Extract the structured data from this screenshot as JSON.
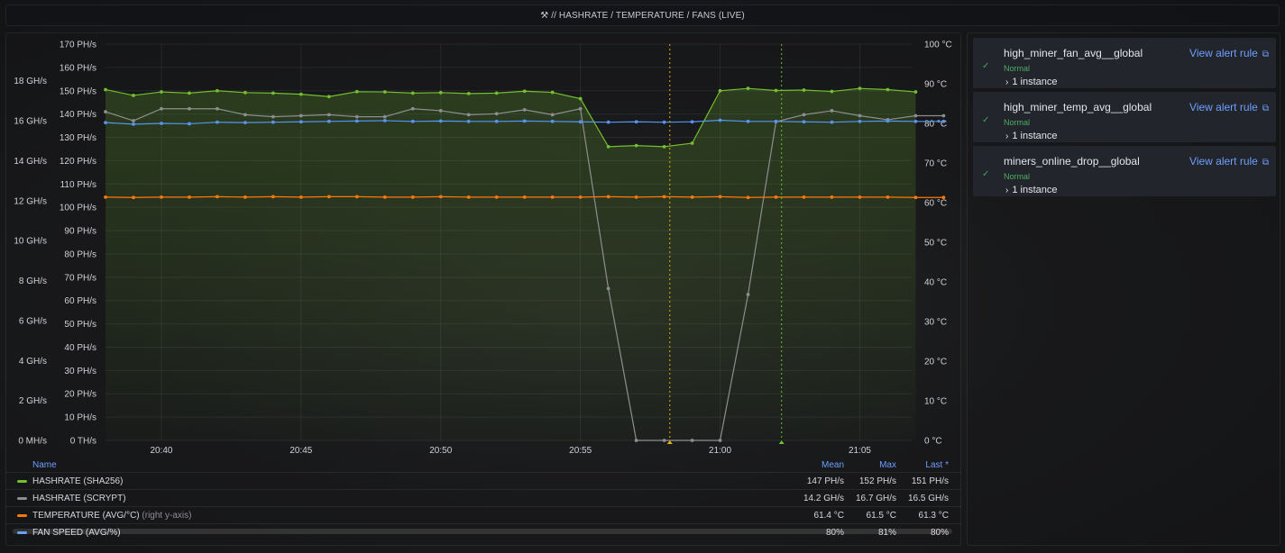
{
  "header": {
    "icon": "pick-icon",
    "title": "// HASHRATE / TEMPERATURE / FANS (LIVE)"
  },
  "chart_data": {
    "type": "line",
    "x": [
      "20:38",
      "20:39",
      "20:40",
      "20:41",
      "20:42",
      "20:43",
      "20:44",
      "20:45",
      "20:46",
      "20:47",
      "20:48",
      "20:49",
      "20:50",
      "20:51",
      "20:52",
      "20:53",
      "20:54",
      "20:55",
      "20:56",
      "20:57",
      "20:58",
      "20:59",
      "21:00",
      "21:01",
      "21:02",
      "21:03",
      "21:04",
      "21:05",
      "21:06",
      "21:07",
      "21:08"
    ],
    "x_ticks": [
      "20:40",
      "20:45",
      "20:50",
      "20:55",
      "21:00",
      "21:05"
    ],
    "left_axis_1": {
      "unit": "PH/s",
      "ticks": [
        "0 TH/s",
        "10 PH/s",
        "20 PH/s",
        "30 PH/s",
        "40 PH/s",
        "50 PH/s",
        "60 PH/s",
        "70 PH/s",
        "80 PH/s",
        "90 PH/s",
        "100 PH/s",
        "110 PH/s",
        "120 PH/s",
        "130 PH/s",
        "140 PH/s",
        "150 PH/s",
        "160 PH/s",
        "170 PH/s"
      ],
      "ylim": [
        0,
        170
      ]
    },
    "left_axis_2": {
      "unit": "GH/s",
      "ticks": [
        "0 MH/s",
        "2 GH/s",
        "4 GH/s",
        "6 GH/s",
        "8 GH/s",
        "10 GH/s",
        "12 GH/s",
        "14 GH/s",
        "16 GH/s",
        "18 GH/s"
      ],
      "ylim": [
        0,
        19
      ]
    },
    "right_axis": {
      "unit": "°C",
      "ticks": [
        "0 °C",
        "10 °C",
        "20 °C",
        "30 °C",
        "40 °C",
        "50 °C",
        "60 °C",
        "70 °C",
        "80 °C",
        "90 °C",
        "100 °C"
      ],
      "ylim": [
        0,
        100
      ]
    },
    "series": [
      {
        "name": "HASHRATE (SHA256)",
        "axis": "left_ph",
        "color": "#73bf2e",
        "values": [
          150.5,
          148,
          149.5,
          149,
          150,
          149.2,
          149,
          148.5,
          147.5,
          149.6,
          149.5,
          149,
          149.2,
          148.8,
          149,
          149.8,
          149.3,
          146.6,
          126,
          126.5,
          126,
          127.5,
          150,
          151,
          150.1,
          150.3,
          149.7,
          151,
          150.5,
          149.5,
          null
        ]
      },
      {
        "name": "HASHRATE (SCRYPT)",
        "axis": "left_gh",
        "color": "#8e8e8e",
        "values": [
          16.45,
          16.0,
          16.6,
          16.6,
          16.6,
          16.3,
          16.2,
          16.25,
          16.3,
          16.2,
          16.2,
          16.6,
          16.5,
          16.3,
          16.35,
          16.55,
          16.3,
          16.6,
          7.6,
          0,
          0,
          0,
          0,
          7.3,
          15.95,
          16.3,
          16.5,
          16.25,
          16.05,
          16.25,
          16.25
        ]
      },
      {
        "name": "TEMPERATURE (AVG/°C)",
        "note": "(right y-axis)",
        "axis": "right",
        "color": "#ff780a",
        "values": [
          61.4,
          61.3,
          61.4,
          61.4,
          61.5,
          61.4,
          61.5,
          61.4,
          61.5,
          61.5,
          61.4,
          61.4,
          61.5,
          61.4,
          61.4,
          61.4,
          61.4,
          61.4,
          61.5,
          61.4,
          61.5,
          61.4,
          61.5,
          61.3,
          61.4,
          61.4,
          61.4,
          61.4,
          61.4,
          61.3,
          61.3
        ]
      },
      {
        "name": "FAN SPEED (AVG/%)",
        "axis": "right",
        "color": "#5794f2",
        "values": [
          80.2,
          79.8,
          80.0,
          79.9,
          80.3,
          80.2,
          80.3,
          80.4,
          80.5,
          80.6,
          80.7,
          80.5,
          80.6,
          80.5,
          80.5,
          80.6,
          80.5,
          80.4,
          80.3,
          80.4,
          80.3,
          80.4,
          80.8,
          80.5,
          80.5,
          80.4,
          80.3,
          80.5,
          80.6,
          80.5,
          80.5
        ]
      }
    ],
    "annotations": [
      {
        "x": "20:58",
        "color": "#e0b400"
      },
      {
        "x": "21:02",
        "color": "#73bf2e"
      }
    ]
  },
  "legend": {
    "head": {
      "name": "Name",
      "mean": "Mean",
      "max": "Max",
      "last": "Last *"
    },
    "rows": [
      {
        "name": "HASHRATE (SHA256)",
        "sub": "",
        "color": "#73bf2e",
        "mean": "147 PH/s",
        "max": "152 PH/s",
        "last": "151 PH/s"
      },
      {
        "name": "HASHRATE (SCRYPT)",
        "sub": "",
        "color": "#8e8e8e",
        "mean": "14.2 GH/s",
        "max": "16.7 GH/s",
        "last": "16.5 GH/s"
      },
      {
        "name": "TEMPERATURE (AVG/°C)",
        "sub": "(right y-axis)",
        "color": "#ff780a",
        "mean": "61.4 °C",
        "max": "61.5 °C",
        "last": "61.3 °C"
      },
      {
        "name": "FAN SPEED (AVG/%)",
        "sub": "",
        "color": "#5794f2",
        "mean": "80%",
        "max": "81%",
        "last": "80%"
      }
    ]
  },
  "alerts": [
    {
      "name": "high_miner_fan_avg__global",
      "state": "Normal",
      "instances": "1 instance",
      "link": "View alert rule"
    },
    {
      "name": "high_miner_temp_avg__global",
      "state": "Normal",
      "instances": "1 instance",
      "link": "View alert rule"
    },
    {
      "name": "miners_online_drop__global",
      "state": "Normal",
      "instances": "1 instance",
      "link": "View alert rule"
    }
  ]
}
